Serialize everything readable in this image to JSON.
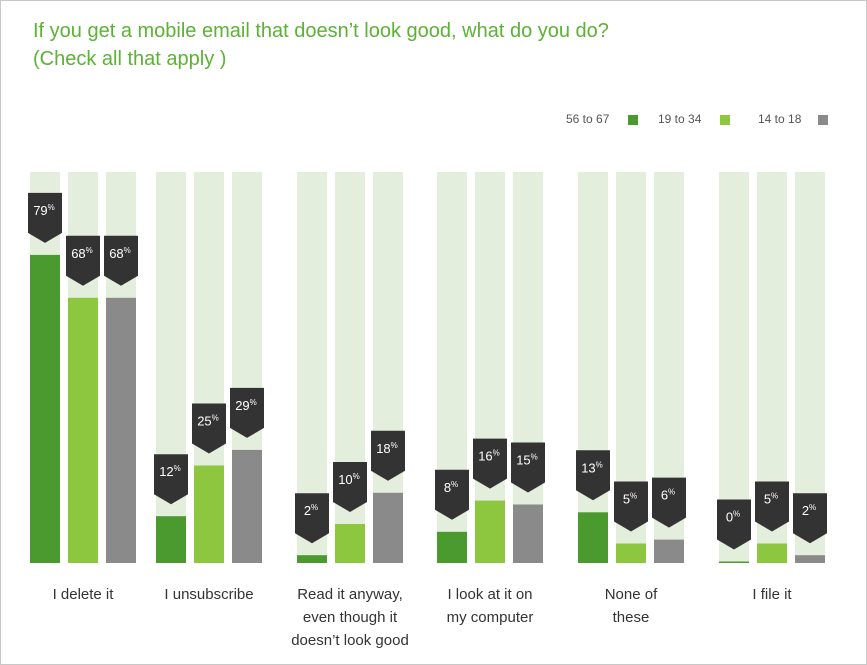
{
  "chart_data": {
    "type": "bar",
    "title": "If you get a mobile email that doesn’t look good, what do you do?",
    "subtitle": "(Check all that apply )",
    "xlabel": "",
    "ylabel": "",
    "ylim": [
      0,
      100
    ],
    "grid": false,
    "legend_position": "top-right",
    "value_suffix": "%",
    "categories": [
      [
        "I delete it"
      ],
      [
        "I unsubscribe"
      ],
      [
        "Read it anyway,",
        "even though it",
        "doesn’t look good"
      ],
      [
        "I look at it on",
        "my computer"
      ],
      [
        "None of",
        "these"
      ],
      [
        "I file it"
      ]
    ],
    "series": [
      {
        "name": "56 to 67",
        "color": "#4a9a2f",
        "values": [
          79,
          12,
          2,
          8,
          13,
          0
        ]
      },
      {
        "name": "19 to 34",
        "color": "#8dc63f",
        "values": [
          68,
          25,
          10,
          16,
          5,
          5
        ]
      },
      {
        "name": "14 to 18",
        "color": "#8a8a8a",
        "values": [
          68,
          29,
          18,
          15,
          6,
          2
        ]
      }
    ],
    "track_color": "#e4eedc",
    "label_bg_color": "#333333"
  }
}
